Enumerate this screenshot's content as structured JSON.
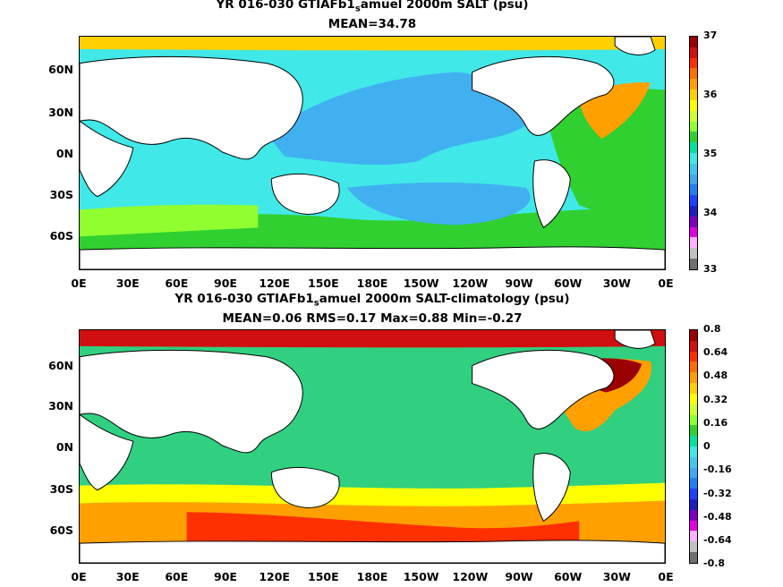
{
  "panel1": {
    "title_pre": "YR 016-030 GTIAFb1",
    "title_sub": "s",
    "title_post": "amuel 2000m SALT (psu)",
    "stats": "MEAN=34.78",
    "colorbar": {
      "labels": [
        "37",
        "36",
        "35",
        "34",
        "33"
      ],
      "colors": [
        "#9b0000",
        "#d01010",
        "#ff3000",
        "#ff7000",
        "#ffa000",
        "#ffd000",
        "#ffff00",
        "#d0ff30",
        "#90ff30",
        "#30d030",
        "#00e0a0",
        "#40e8e8",
        "#40c8f0",
        "#40a8f0",
        "#2080f0",
        "#2040ff",
        "#2020c0",
        "#8000c0",
        "#e000e0",
        "#ffb0ff",
        "#c0c0c0",
        "#707070"
      ]
    }
  },
  "panel2": {
    "title_pre": "YR 016-030 GTIAFb1",
    "title_sub": "s",
    "title_post": "amuel 2000m SALT-climatology (psu)",
    "stats": "MEAN=0.06   RMS=0.17   Max=0.88   Min=-0.27",
    "colorbar": {
      "labels": [
        "0.8",
        "0.64",
        "0.48",
        "0.32",
        "0.16",
        "0",
        "-0.16",
        "-0.32",
        "-0.48",
        "-0.64",
        "-0.8"
      ],
      "colors": [
        "#9b0000",
        "#d01010",
        "#ff3000",
        "#ff7000",
        "#ffa000",
        "#ffd000",
        "#ffff00",
        "#d0ff30",
        "#90ff30",
        "#30d030",
        "#00e0a0",
        "#40e8e8",
        "#40c8f0",
        "#40a8f0",
        "#2080f0",
        "#2040ff",
        "#2020c0",
        "#8000c0",
        "#e000e0",
        "#ffb0ff",
        "#c0c0c0",
        "#707070"
      ]
    }
  },
  "axes": {
    "lat_labels": [
      "60N",
      "30N",
      "0N",
      "30S",
      "60S"
    ],
    "lon_labels": [
      "0E",
      "30E",
      "60E",
      "90E",
      "120E",
      "150E",
      "180E",
      "150W",
      "120W",
      "90W",
      "60W",
      "30W",
      "0E"
    ]
  },
  "colors": {
    "land": "#ffffff",
    "coast": "#000000",
    "panel1_ocean": "#40e8e8",
    "panel1_pacific": "#40c0f0",
    "panel1_south": "#30d030",
    "panel1_atlantic": "#30d030",
    "panel1_highsalt": "#ffa000",
    "panel2_ocean": "#30d080",
    "panel2_south_yellow": "#ffff00",
    "panel2_south_orange": "#ffa000",
    "panel2_south_red": "#ff3000",
    "panel2_north_red": "#9b0000"
  }
}
